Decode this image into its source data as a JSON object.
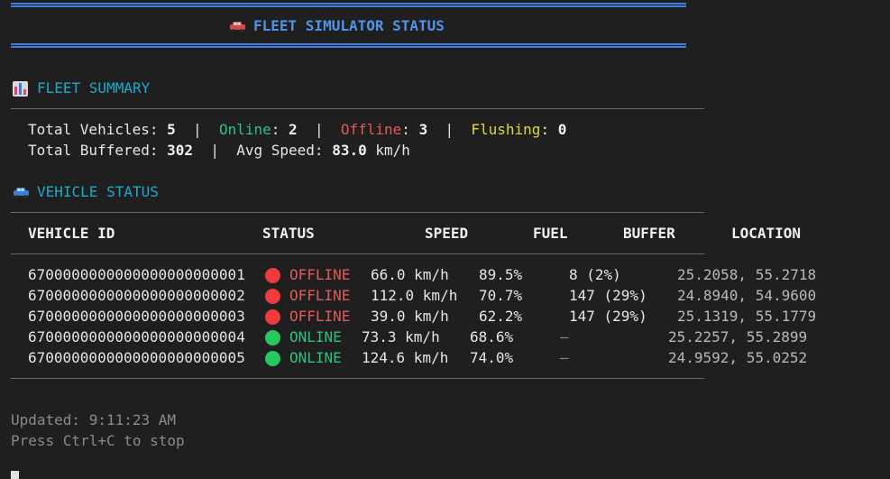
{
  "header": {
    "title": "FLEET SIMULATOR STATUS",
    "icon": "car-icon"
  },
  "summary": {
    "section_title": "FLEET SUMMARY",
    "icon": "bar-chart-icon",
    "total_vehicles_label": "Total Vehicles:",
    "total_vehicles": "5",
    "online_label": "Online",
    "online": "2",
    "offline_label": "Offline",
    "offline": "3",
    "flushing_label": "Flushing",
    "flushing": "0",
    "separator": "|",
    "colon": ":",
    "total_buffered_label": "Total Buffered:",
    "total_buffered": "302",
    "avg_speed_label": "Avg Speed:",
    "avg_speed": "83.0",
    "avg_speed_unit": "km/h"
  },
  "vehicles": {
    "section_title": "VEHICLE STATUS",
    "icon": "car-icon",
    "columns": [
      "VEHICLE ID",
      "STATUS",
      "SPEED",
      "FUEL",
      "BUFFER",
      "LOCATION"
    ],
    "rows": [
      {
        "id": "6700000000000000000000001",
        "status": "OFFLINE",
        "status_color": "#ef3b3b",
        "speed": "66.0 km/h",
        "fuel": "89.5%",
        "buffer": "8 (2%)",
        "location": "25.2058, 55.2718"
      },
      {
        "id": "6700000000000000000000002",
        "status": "OFFLINE",
        "status_color": "#ef3b3b",
        "speed": "112.0 km/h",
        "fuel": "70.7%",
        "buffer": "147 (29%)",
        "location": "24.8940, 54.9600"
      },
      {
        "id": "6700000000000000000000003",
        "status": "OFFLINE",
        "status_color": "#ef3b3b",
        "speed": "39.0 km/h",
        "fuel": "62.2%",
        "buffer": "147 (29%)",
        "location": "25.1319, 55.1779"
      },
      {
        "id": "6700000000000000000000004",
        "status": "ONLINE",
        "status_color": "#27c95f",
        "speed": "73.3 km/h",
        "fuel": "68.6%",
        "buffer": "—",
        "location": "25.2257, 55.2899"
      },
      {
        "id": "6700000000000000000000005",
        "status": "ONLINE",
        "status_color": "#27c95f",
        "speed": "124.6 km/h",
        "fuel": "74.0%",
        "buffer": "—",
        "location": "24.9592, 55.0252"
      }
    ]
  },
  "footer": {
    "updated": "Updated: 9:11:23 AM",
    "hint": "Press Ctrl+C to stop"
  }
}
